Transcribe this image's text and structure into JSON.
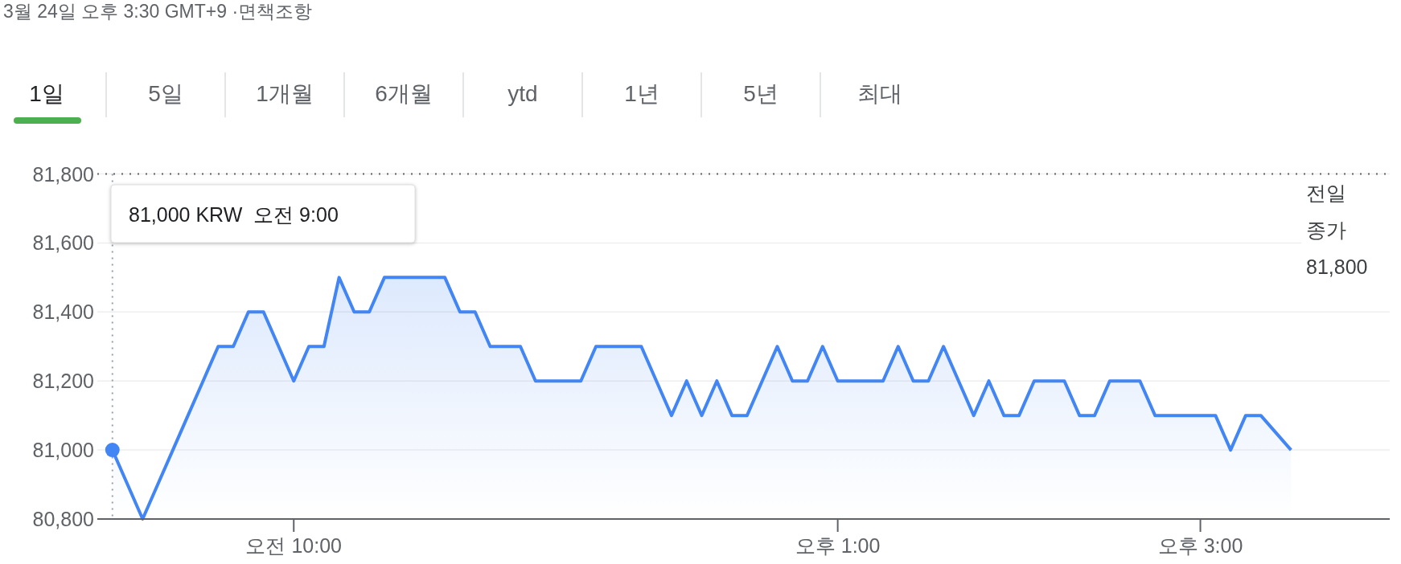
{
  "chart_data": {
    "type": "area",
    "subtitle": "3월 24일 오후 3:30 GMT+9 ·면책조항",
    "annotations": [
      "1일",
      "5일",
      "1개월",
      "6개월",
      "ytd",
      "1년",
      "5년",
      "최대",
      "81,000 KRW  오전 9:00"
    ],
    "categories": [
      null,
      null,
      null,
      null,
      null,
      null,
      null,
      null,
      null,
      null,
      null,
      null,
      null,
      "오전 10:00",
      null,
      null,
      null,
      null,
      null,
      null,
      null,
      null,
      null,
      null,
      null,
      null,
      null,
      null,
      null,
      null,
      null,
      null,
      null,
      null,
      null,
      null,
      null,
      null,
      null,
      null,
      null,
      null,
      null,
      null,
      null,
      null,
      null,
      null,
      null,
      "오후 1:00",
      null,
      null,
      null,
      null,
      null,
      null,
      null,
      null,
      null,
      null,
      null,
      null,
      null,
      null,
      null,
      null,
      null,
      null,
      null,
      null,
      null,
      null,
      null,
      "오후 3:00",
      null,
      null,
      null,
      null,
      null,
      null,
      null,
      null,
      null,
      null,
      null,
      null
    ],
    "series": [
      {
        "color": "#4285f4",
        "values": [
          null,
          81000,
          80900,
          80800,
          80900,
          81000,
          81100,
          81200,
          81300,
          81300,
          81400,
          81400,
          81300,
          81200,
          81300,
          81300,
          81500,
          81400,
          81400,
          81500,
          81500,
          81500,
          81500,
          81500,
          81400,
          81400,
          81300,
          81300,
          81300,
          81200,
          81200,
          81200,
          81200,
          81300,
          81300,
          81300,
          81300,
          81200,
          81100,
          81200,
          81100,
          81200,
          81100,
          81100,
          81200,
          81300,
          81200,
          81200,
          81300,
          81200,
          81200,
          81200,
          81200,
          81300,
          81200,
          81200,
          81300,
          81200,
          81100,
          81200,
          81100,
          81100,
          81200,
          81200,
          81200,
          81100,
          81100,
          81200,
          81200,
          81200,
          81100,
          81100,
          81100,
          81100,
          81100,
          81000,
          81100,
          81100,
          81050,
          81000,
          null,
          null,
          null,
          null,
          null,
          null
        ]
      }
    ],
    "ylim": [
      80800,
      81800
    ],
    "yticks": [
      {
        "value": 80800,
        "label": "80,800"
      },
      {
        "value": 81000,
        "label": "81,000"
      },
      {
        "value": 81200,
        "label": "81,200"
      },
      {
        "value": 81400,
        "label": "81,400"
      },
      {
        "value": 81600,
        "label": "81,600"
      },
      {
        "value": 81800,
        "label": "81,800"
      }
    ],
    "ref_lines": [
      {
        "axis": "y",
        "value": 81800,
        "label": "전일 종가 81,800",
        "line_style": "dotted",
        "color": "#5f6368"
      }
    ],
    "grid": "y",
    "marker": "none",
    "line_style": "solid"
  }
}
